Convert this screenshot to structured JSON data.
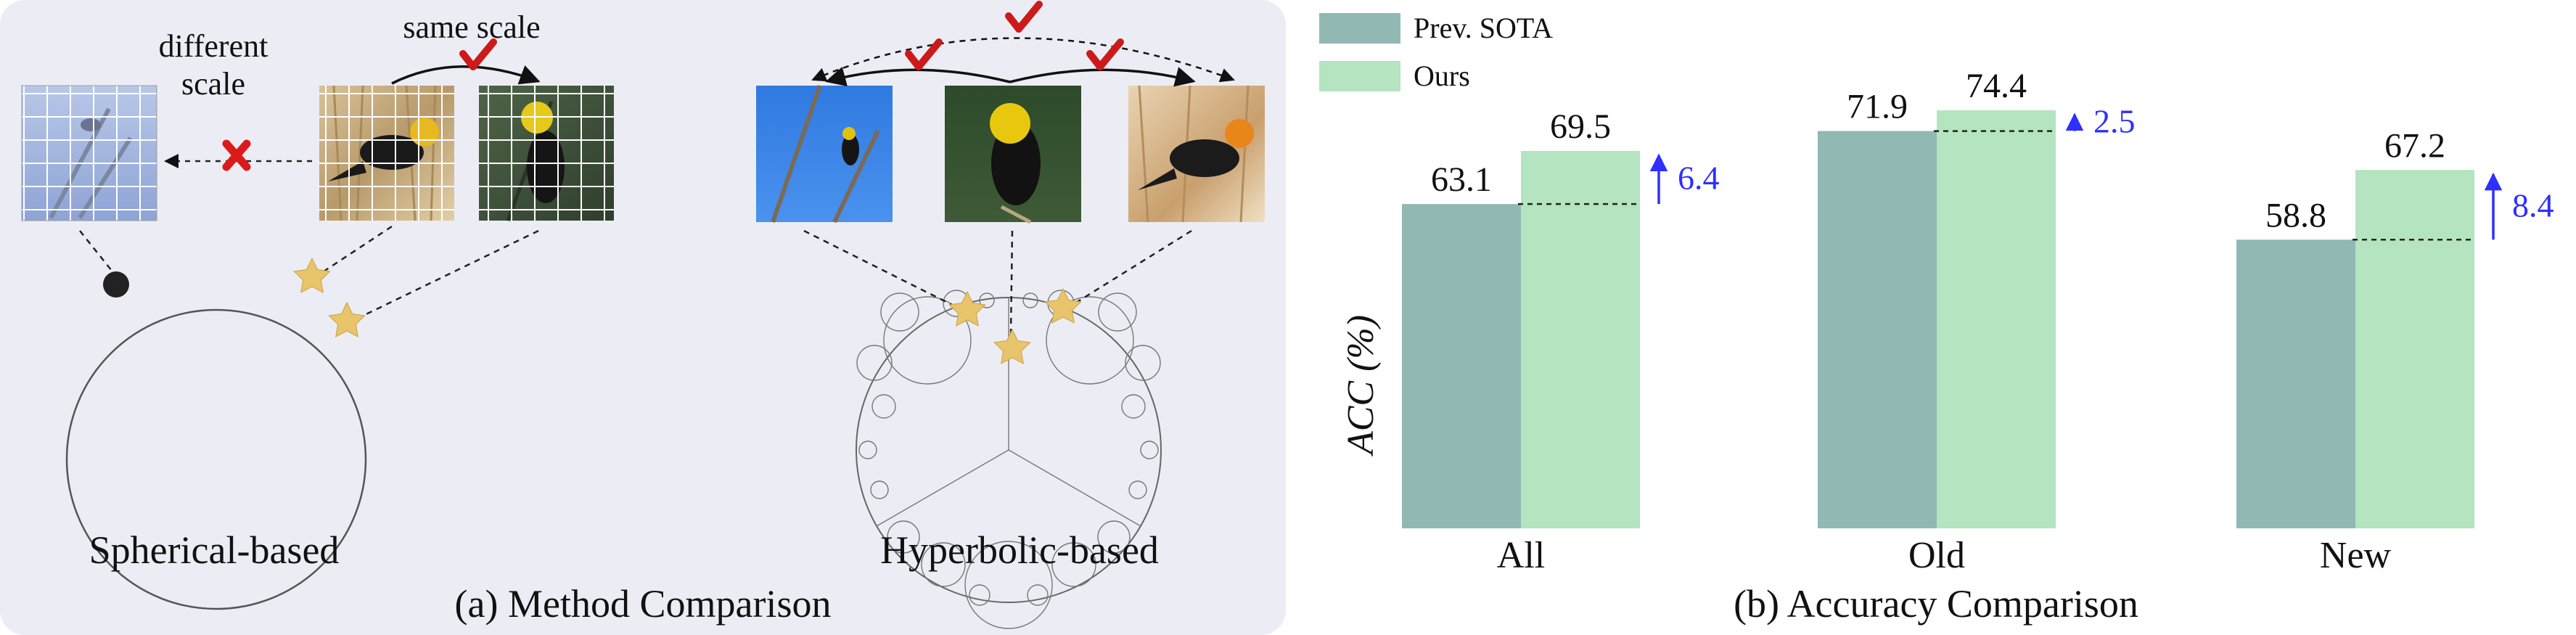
{
  "panel_a": {
    "caption": "(a) Method Comparison",
    "spherical_label": "Spherical-based",
    "hyperbolic_label": "Hyperbolic-based",
    "different_scale_line1": "different",
    "different_scale_line2": "scale",
    "same_scale": "same scale"
  },
  "panel_b": {
    "caption": "(b) Accuracy Comparison"
  },
  "colors": {
    "prev_sota": "#92b8b4",
    "ours": "#b4e4c0",
    "improvement_arrow": "#2f2fff",
    "check": "#cc1a1a",
    "cross": "#dd1a1a",
    "star": "#e8c46a",
    "panel_a_bg": "#ecedf4"
  },
  "chart_data": {
    "type": "bar",
    "categories": [
      "All",
      "Old",
      "New"
    ],
    "series": [
      {
        "name": "Prev. SOTA",
        "values": [
          63.1,
          71.9,
          58.8
        ]
      },
      {
        "name": "Ours",
        "values": [
          69.5,
          74.4,
          67.2
        ]
      }
    ],
    "improvements": [
      "6.4",
      "2.5",
      "8.4"
    ],
    "ylabel": "ACC (%)",
    "legend_position": "top-left",
    "grid": false
  }
}
